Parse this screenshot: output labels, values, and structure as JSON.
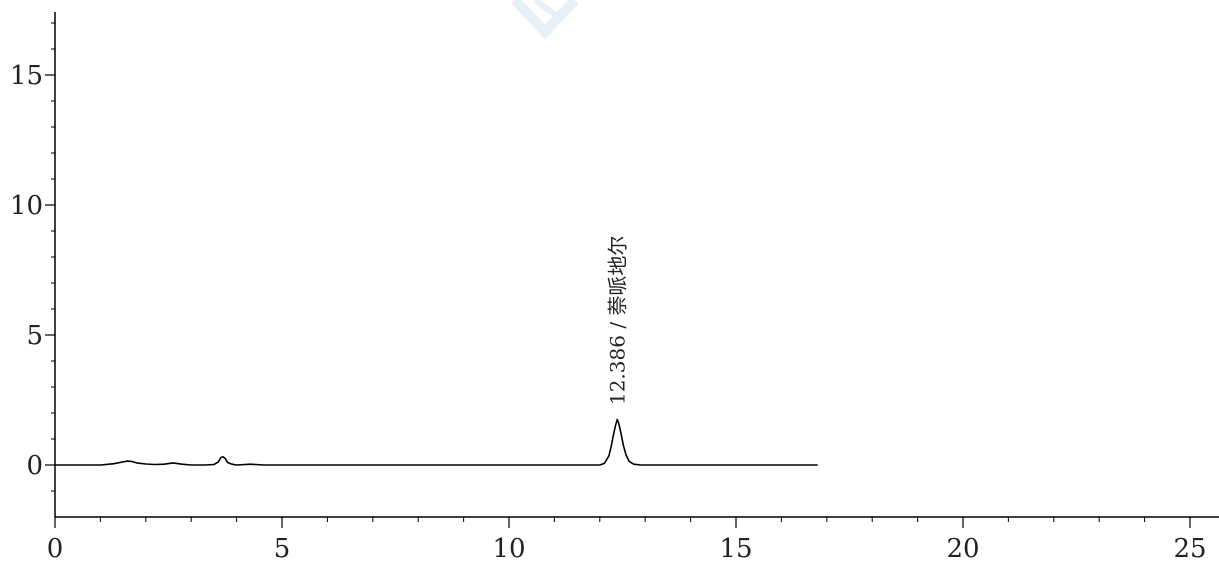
{
  "chart_data": {
    "type": "line",
    "title": "",
    "xlabel": "",
    "ylabel": "",
    "xlim": [
      0,
      25.6
    ],
    "ylim": [
      -2,
      17.2
    ],
    "x_ticks": [
      0,
      5,
      10,
      15,
      20,
      25
    ],
    "y_ticks": [
      0,
      5,
      10,
      15
    ],
    "x_tick_labels": [
      "0",
      "5",
      "10",
      "15",
      "20",
      "25"
    ],
    "y_tick_labels": [
      "0",
      "5",
      "10",
      "15"
    ],
    "x_minor_step": 1,
    "y_minor_step": 1,
    "grid": false,
    "series": [
      {
        "line_color": "#000000",
        "x": [
          0,
          1.0,
          1.3,
          1.5,
          1.6,
          1.7,
          1.8,
          2.0,
          2.2,
          2.4,
          2.6,
          2.8,
          3.0,
          3.3,
          3.5,
          3.6,
          3.65,
          3.7,
          3.75,
          3.8,
          3.9,
          4.0,
          4.3,
          4.6,
          5.0,
          8.0,
          11.0,
          12.0,
          12.1,
          12.2,
          12.25,
          12.3,
          12.35,
          12.386,
          12.42,
          12.47,
          12.52,
          12.58,
          12.65,
          12.75,
          12.9,
          14.0,
          16.8
        ],
        "y": [
          0,
          0,
          0.05,
          0.12,
          0.15,
          0.13,
          0.08,
          0.04,
          0.02,
          0.03,
          0.08,
          0.03,
          0,
          0,
          0.02,
          0.12,
          0.28,
          0.32,
          0.25,
          0.1,
          0.03,
          0,
          0.03,
          0,
          0,
          0,
          0,
          0,
          0.06,
          0.35,
          0.7,
          1.15,
          1.55,
          1.75,
          1.58,
          1.2,
          0.75,
          0.38,
          0.13,
          0.03,
          0,
          0,
          0
        ]
      }
    ],
    "annotations": [
      {
        "x": 12.386,
        "text": "12.386 / 萘哌地尔"
      }
    ]
  },
  "colors": {
    "axis": "#000000",
    "text": "#222222",
    "watermark": "#cfe3f3"
  }
}
